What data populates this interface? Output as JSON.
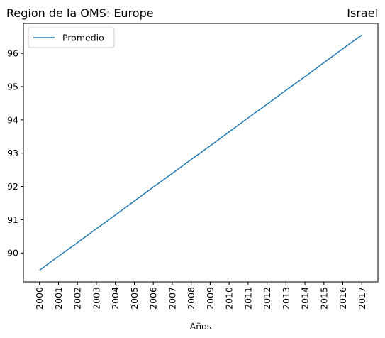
{
  "chart_data": {
    "type": "line",
    "title_left": "Region de la OMS: Europe",
    "title_right": "Israel",
    "xlabel": "Años",
    "ylabel": "",
    "x": [
      2000,
      2001,
      2002,
      2003,
      2004,
      2005,
      2006,
      2007,
      2008,
      2009,
      2010,
      2011,
      2012,
      2013,
      2014,
      2015,
      2016,
      2017
    ],
    "series": [
      {
        "name": "Promedio",
        "color": "#1f77b4",
        "values": [
          89.48,
          89.9,
          90.31,
          90.73,
          91.14,
          91.56,
          91.98,
          92.39,
          92.81,
          93.22,
          93.64,
          94.06,
          94.47,
          94.89,
          95.3,
          95.72,
          96.14,
          96.55
        ]
      }
    ],
    "yticks": [
      90,
      91,
      92,
      93,
      94,
      95,
      96
    ],
    "ylim": [
      89.13,
      96.9
    ],
    "xlim": [
      1999.15,
      2017.85
    ],
    "grid": false,
    "legend_position": "top-left"
  }
}
